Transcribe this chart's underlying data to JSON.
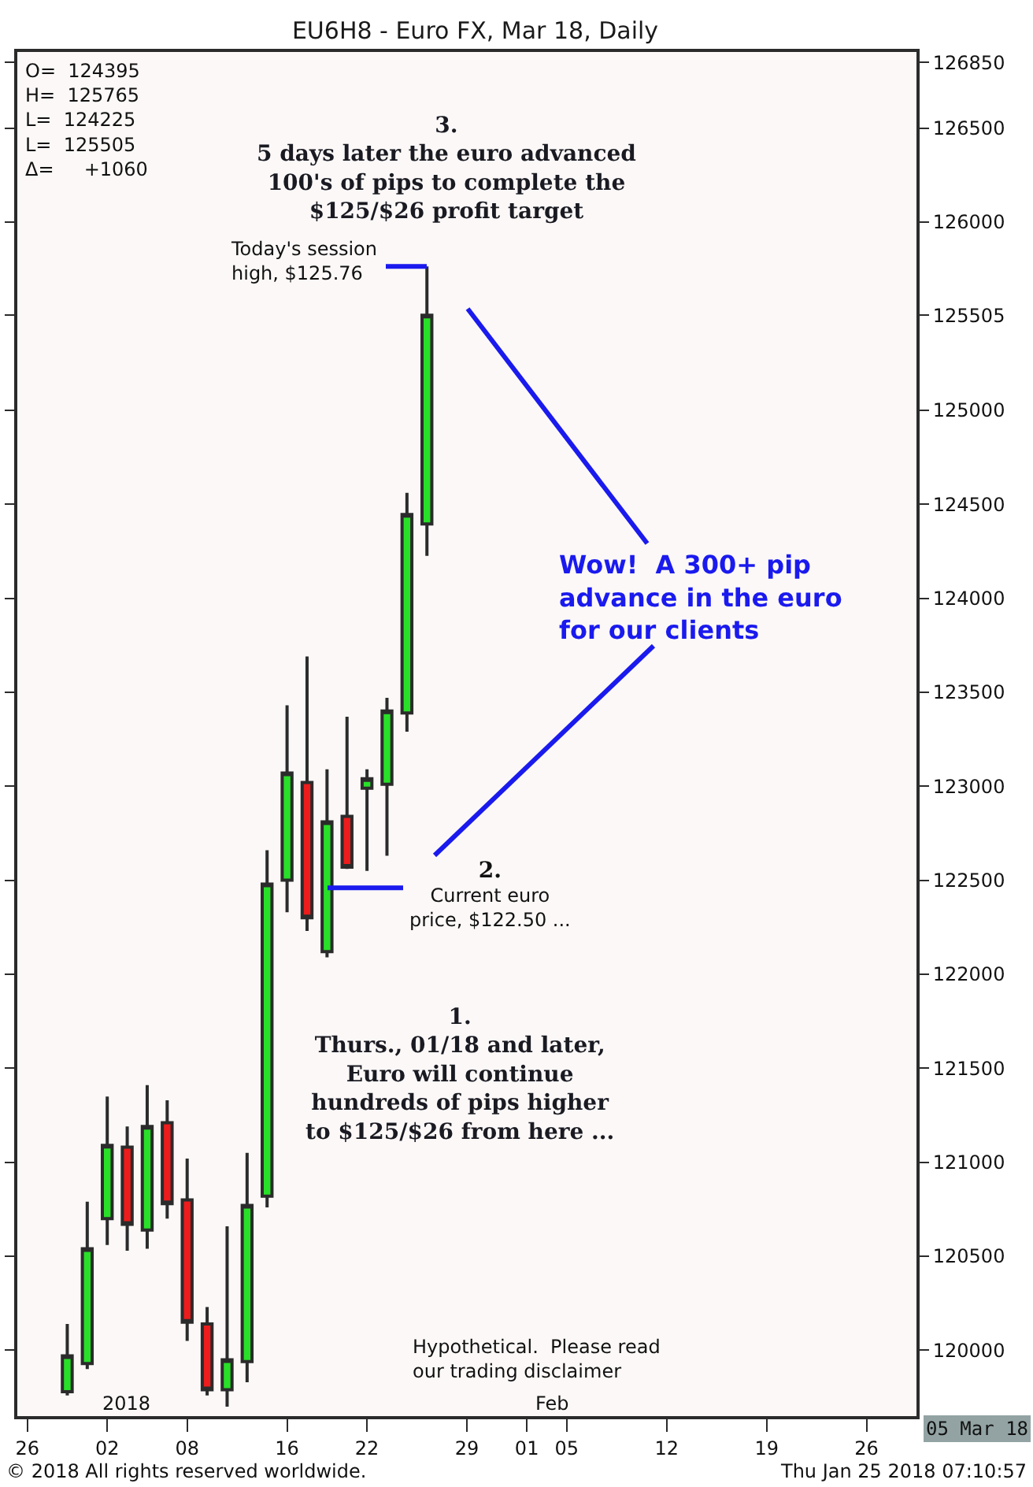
{
  "chart_data": {
    "type": "candlestick",
    "title": "EU6H8 - Euro FX, Mar 18, Daily",
    "categories": [
      "26",
      null,
      null,
      null,
      "02",
      null,
      null,
      null,
      "08",
      null,
      null,
      null,
      null,
      "16",
      null,
      null,
      null,
      "22",
      null,
      null,
      null,
      null,
      "29",
      null,
      null,
      "01",
      null,
      "05",
      null,
      null,
      null,
      null,
      "12",
      null,
      null,
      null,
      null,
      "19",
      null,
      null,
      null,
      null,
      "26",
      null,
      null
    ],
    "ohlc": [
      null,
      null,
      [
        119780,
        120140,
        119760,
        119970
      ],
      [
        119930,
        120790,
        119900,
        120540
      ],
      [
        120700,
        121350,
        120560,
        121090
      ],
      [
        121080,
        121190,
        120530,
        120670
      ],
      [
        120640,
        121410,
        120540,
        121190
      ],
      [
        121210,
        121330,
        120700,
        120780
      ],
      [
        120800,
        121020,
        120050,
        120150
      ],
      [
        120140,
        120230,
        119760,
        119790
      ],
      [
        119790,
        120660,
        119700,
        119950
      ],
      [
        119940,
        121050,
        119830,
        120770
      ],
      [
        120820,
        122660,
        120760,
        122480
      ],
      [
        122500,
        123430,
        122330,
        123070
      ],
      [
        123020,
        123690,
        122230,
        122300
      ],
      [
        122120,
        123090,
        122090,
        122810
      ],
      [
        122840,
        123370,
        122560,
        122570
      ],
      [
        122990,
        123090,
        122550,
        123040
      ],
      [
        123010,
        123470,
        122630,
        123400
      ],
      [
        123390,
        124560,
        123290,
        124445
      ],
      [
        124395,
        125765,
        124225,
        125505
      ],
      null,
      null,
      null,
      null,
      null,
      null,
      null,
      null,
      null,
      null,
      null,
      null,
      null,
      null,
      null,
      null,
      null,
      null,
      null,
      null,
      null,
      null,
      null,
      null
    ],
    "colors": [
      null,
      null,
      "#28e028",
      "#28e028",
      "#28e028",
      "#ee1c1c",
      "#28e028",
      "#ee1c1c",
      "#ee1c1c",
      "#ee1c1c",
      "#28e028",
      "#28e028",
      "#28e028",
      "#28e028",
      "#ee1c1c",
      "#28e028",
      "#ee1c1c",
      "#28e028",
      "#28e028",
      "#28e028",
      "#28e028",
      null,
      null,
      null,
      null,
      null,
      null,
      null,
      null,
      null,
      null,
      null,
      null,
      null,
      null,
      null,
      null,
      null,
      null,
      null,
      null,
      null,
      null,
      null,
      null
    ],
    "ylim": [
      119650,
      126905
    ],
    "yticks": [
      120000,
      120500,
      121000,
      121500,
      122000,
      122500,
      123000,
      123500,
      124000,
      124500,
      125000,
      125505,
      126000,
      126500,
      126850
    ],
    "ref_lines": [
      {
        "axis": "y",
        "value": 125765,
        "label": "Today's session\nhigh, $125.76",
        "color": "#1a1aee"
      },
      {
        "axis": "y",
        "value": 122460,
        "label": "2.\nCurrent euro\nprice, $122.50 ...",
        "color": "#1a1aee"
      }
    ],
    "annotations": [
      "O=  124395\nH=  125765\nL=  124225\nL=  125505\nΔ=     +1060",
      "3.\n5 days later the euro advanced\n100's of pips to complete the\n$125/$26 profit target",
      "Wow!  A 300+ pip\nadvance in the euro\nfor our clients",
      "1.\nThurs., 01/18 and later,\nEuro will continue\nhundreds of pips higher\nto $125/$26 from here ...",
      "Hypothetical.  Please read\nour trading disclaimer",
      "2018",
      "Feb",
      "05 Mar 18",
      "© 2018 All rights reserved worldwide.",
      "Thu Jan 25 2018 07:10:57"
    ]
  }
}
